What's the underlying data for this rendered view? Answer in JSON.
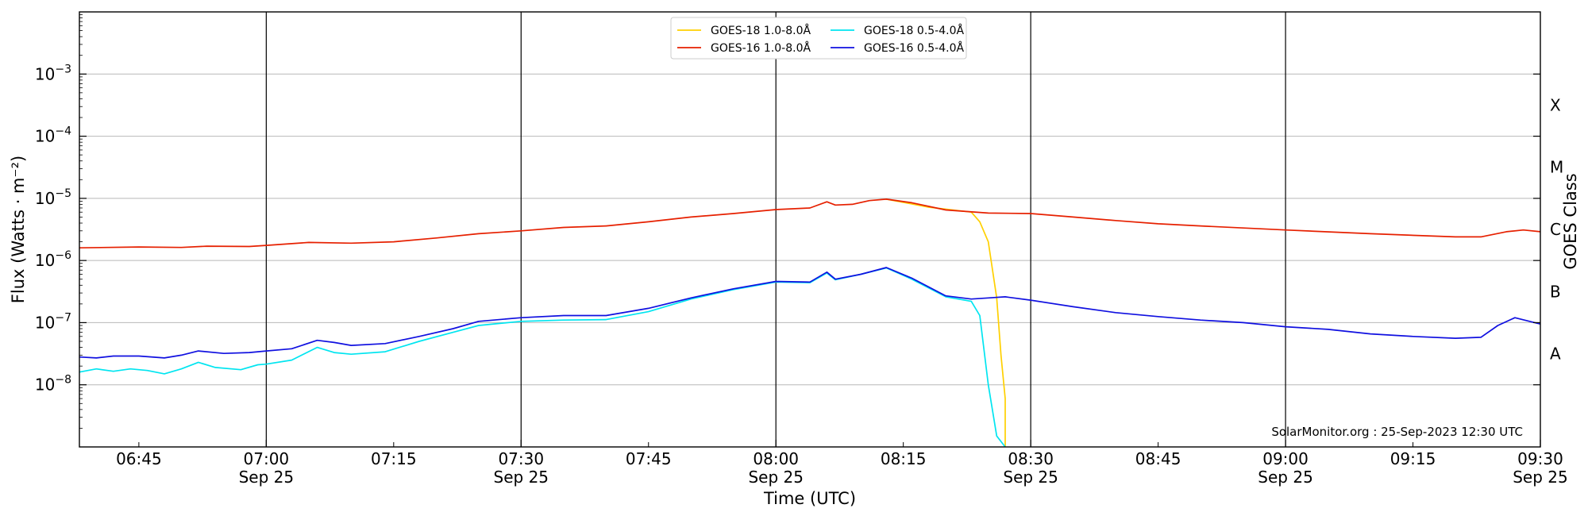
{
  "chart_data": {
    "type": "line",
    "title": "",
    "xlabel": "Time (UTC)",
    "ylabel": "Flux (Watts · m⁻²)",
    "ylabel_right": "GOES Class",
    "yscale": "log",
    "ylim": [
      1e-09,
      0.01
    ],
    "xlim": [
      "2023-09-25T06:38",
      "2023-09-25T09:30"
    ],
    "grid": "horizontal at decades",
    "x_ticks_major": [
      {
        "time": "07:00",
        "date": "Sep 25"
      },
      {
        "time": "07:30",
        "date": "Sep 25"
      },
      {
        "time": "08:00",
        "date": "Sep 25"
      },
      {
        "time": "08:30",
        "date": "Sep 25"
      },
      {
        "time": "09:00",
        "date": "Sep 25"
      },
      {
        "time": "09:30",
        "date": "Sep 25"
      }
    ],
    "x_ticks_minor": [
      "06:45",
      "07:15",
      "07:45",
      "08:15",
      "08:45",
      "09:15"
    ],
    "y_ticks": [
      {
        "value": 1e-08,
        "label_base": "10",
        "label_exp": "−8"
      },
      {
        "value": 1e-07,
        "label_base": "10",
        "label_exp": "−7"
      },
      {
        "value": 1e-06,
        "label_base": "10",
        "label_exp": "−6"
      },
      {
        "value": 1e-05,
        "label_base": "10",
        "label_exp": "−5"
      },
      {
        "value": 0.0001,
        "label_base": "10",
        "label_exp": "−4"
      },
      {
        "value": 0.001,
        "label_base": "10",
        "label_exp": "−3"
      }
    ],
    "goes_classes": [
      {
        "label": "A",
        "value": 3.16e-08
      },
      {
        "label": "B",
        "value": 3.16e-07
      },
      {
        "label": "C",
        "value": 3.16e-06
      },
      {
        "label": "M",
        "value": 3.16e-05
      },
      {
        "label": "X",
        "value": 0.000316
      }
    ],
    "legend_placement": "top-center",
    "annotation": "SolarMonitor.org : 25-Sep-2023 12:30 UTC",
    "series": [
      {
        "name": "GOES-18 1.0-8.0Å",
        "color": "#ffd000",
        "points": [
          [
            "08:13",
            9.7e-06
          ],
          [
            "08:18",
            7.2e-06
          ],
          [
            "08:23",
            6e-06
          ],
          [
            "08:24",
            4.2e-06
          ],
          [
            "08:25",
            2e-06
          ],
          [
            "08:26",
            2.5e-07
          ],
          [
            "08:26.5",
            3e-08
          ],
          [
            "08:27",
            6e-09
          ],
          [
            "08:27",
            1e-09
          ]
        ]
      },
      {
        "name": "GOES-16 1.0-8.0Å",
        "color": "#e62000",
        "points": [
          [
            "06:38",
            1.6e-06
          ],
          [
            "06:45",
            1.65e-06
          ],
          [
            "06:50",
            1.62e-06
          ],
          [
            "06:53",
            1.7e-06
          ],
          [
            "06:58",
            1.68e-06
          ],
          [
            "07:00",
            1.75e-06
          ],
          [
            "07:05",
            1.95e-06
          ],
          [
            "07:10",
            1.9e-06
          ],
          [
            "07:15",
            2e-06
          ],
          [
            "07:20",
            2.3e-06
          ],
          [
            "07:25",
            2.7e-06
          ],
          [
            "07:30",
            3e-06
          ],
          [
            "07:35",
            3.4e-06
          ],
          [
            "07:40",
            3.6e-06
          ],
          [
            "07:45",
            4.2e-06
          ],
          [
            "07:50",
            5e-06
          ],
          [
            "07:55",
            5.7e-06
          ],
          [
            "08:00",
            6.6e-06
          ],
          [
            "08:04",
            7e-06
          ],
          [
            "08:06",
            8.8e-06
          ],
          [
            "08:07",
            7.8e-06
          ],
          [
            "08:09",
            8e-06
          ],
          [
            "08:11",
            9.2e-06
          ],
          [
            "08:13",
            9.7e-06
          ],
          [
            "08:16",
            8.5e-06
          ],
          [
            "08:20",
            6.5e-06
          ],
          [
            "08:25",
            5.8e-06
          ],
          [
            "08:30",
            5.7e-06
          ],
          [
            "08:35",
            5e-06
          ],
          [
            "08:40",
            4.4e-06
          ],
          [
            "08:45",
            3.9e-06
          ],
          [
            "08:50",
            3.6e-06
          ],
          [
            "09:00",
            3.1e-06
          ],
          [
            "09:10",
            2.7e-06
          ],
          [
            "09:20",
            2.4e-06
          ],
          [
            "09:23",
            2.4e-06
          ],
          [
            "09:26",
            2.9e-06
          ],
          [
            "09:28",
            3.1e-06
          ],
          [
            "09:30",
            2.9e-06
          ]
        ]
      },
      {
        "name": "GOES-18 0.5-4.0Å",
        "color": "#00e5f0",
        "points": [
          [
            "06:38",
            1.6e-08
          ],
          [
            "06:40",
            1.8e-08
          ],
          [
            "06:42",
            1.65e-08
          ],
          [
            "06:44",
            1.8e-08
          ],
          [
            "06:46",
            1.7e-08
          ],
          [
            "06:48",
            1.5e-08
          ],
          [
            "06:50",
            1.8e-08
          ],
          [
            "06:52",
            2.3e-08
          ],
          [
            "06:54",
            1.9e-08
          ],
          [
            "06:57",
            1.75e-08
          ],
          [
            "06:59",
            2.1e-08
          ],
          [
            "07:00",
            2.15e-08
          ],
          [
            "07:03",
            2.5e-08
          ],
          [
            "07:06",
            4e-08
          ],
          [
            "07:08",
            3.3e-08
          ],
          [
            "07:10",
            3.1e-08
          ],
          [
            "07:14",
            3.4e-08
          ],
          [
            "07:18",
            5e-08
          ],
          [
            "07:22",
            7e-08
          ],
          [
            "07:25",
            9e-08
          ],
          [
            "07:30",
            1.05e-07
          ],
          [
            "07:35",
            1.1e-07
          ],
          [
            "07:40",
            1.12e-07
          ],
          [
            "07:45",
            1.5e-07
          ],
          [
            "07:50",
            2.4e-07
          ],
          [
            "07:55",
            3.4e-07
          ],
          [
            "08:00",
            4.5e-07
          ],
          [
            "08:04",
            4.4e-07
          ],
          [
            "08:06",
            6.3e-07
          ],
          [
            "08:07",
            4.9e-07
          ],
          [
            "08:10",
            6e-07
          ],
          [
            "08:13",
            7.6e-07
          ],
          [
            "08:16",
            5e-07
          ],
          [
            "08:20",
            2.6e-07
          ],
          [
            "08:23",
            2.2e-07
          ],
          [
            "08:24",
            1.3e-07
          ],
          [
            "08:25",
            1e-08
          ],
          [
            "08:26",
            1.5e-09
          ],
          [
            "08:27",
            1e-09
          ]
        ]
      },
      {
        "name": "GOES-16 0.5-4.0Å",
        "color": "#1010e0",
        "points": [
          [
            "06:38",
            2.8e-08
          ],
          [
            "06:40",
            2.7e-08
          ],
          [
            "06:42",
            2.9e-08
          ],
          [
            "06:45",
            2.9e-08
          ],
          [
            "06:48",
            2.7e-08
          ],
          [
            "06:50",
            3e-08
          ],
          [
            "06:52",
            3.5e-08
          ],
          [
            "06:55",
            3.2e-08
          ],
          [
            "06:58",
            3.3e-08
          ],
          [
            "07:00",
            3.5e-08
          ],
          [
            "07:03",
            3.8e-08
          ],
          [
            "07:06",
            5.2e-08
          ],
          [
            "07:08",
            4.8e-08
          ],
          [
            "07:10",
            4.3e-08
          ],
          [
            "07:14",
            4.6e-08
          ],
          [
            "07:18",
            6e-08
          ],
          [
            "07:22",
            8e-08
          ],
          [
            "07:25",
            1.05e-07
          ],
          [
            "07:30",
            1.2e-07
          ],
          [
            "07:35",
            1.3e-07
          ],
          [
            "07:40",
            1.3e-07
          ],
          [
            "07:45",
            1.7e-07
          ],
          [
            "07:50",
            2.5e-07
          ],
          [
            "07:55",
            3.5e-07
          ],
          [
            "08:00",
            4.6e-07
          ],
          [
            "08:04",
            4.5e-07
          ],
          [
            "08:06",
            6.5e-07
          ],
          [
            "08:07",
            5e-07
          ],
          [
            "08:10",
            6e-07
          ],
          [
            "08:13",
            7.7e-07
          ],
          [
            "08:16",
            5.2e-07
          ],
          [
            "08:20",
            2.7e-07
          ],
          [
            "08:23",
            2.4e-07
          ],
          [
            "08:25",
            2.5e-07
          ],
          [
            "08:27",
            2.6e-07
          ],
          [
            "08:30",
            2.3e-07
          ],
          [
            "08:35",
            1.8e-07
          ],
          [
            "08:40",
            1.45e-07
          ],
          [
            "08:45",
            1.25e-07
          ],
          [
            "08:50",
            1.1e-07
          ],
          [
            "08:55",
            1e-07
          ],
          [
            "09:00",
            8.6e-08
          ],
          [
            "09:05",
            7.8e-08
          ],
          [
            "09:10",
            6.6e-08
          ],
          [
            "09:15",
            6e-08
          ],
          [
            "09:20",
            5.6e-08
          ],
          [
            "09:23",
            5.8e-08
          ],
          [
            "09:25",
            9e-08
          ],
          [
            "09:27",
            1.2e-07
          ],
          [
            "09:30",
            9.5e-08
          ]
        ]
      }
    ]
  }
}
